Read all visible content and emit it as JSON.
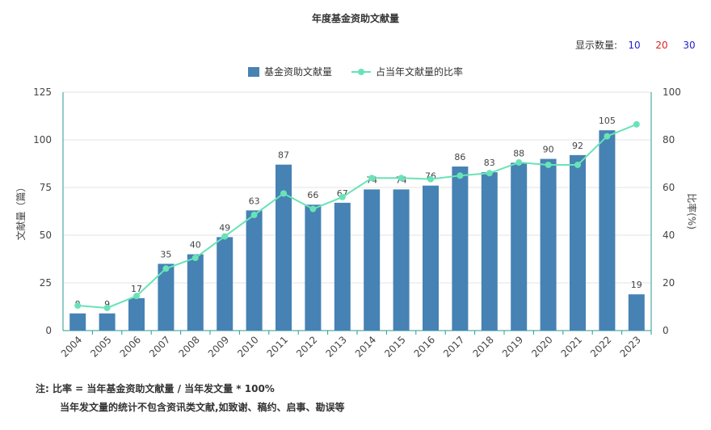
{
  "title": "年度基金资助文献量",
  "count_selector": {
    "label": "显示数量:",
    "options": [
      {
        "label": "10",
        "color": "#2222cc"
      },
      {
        "label": "20",
        "color": "#dd2222"
      },
      {
        "label": "30",
        "color": "#2222cc"
      }
    ]
  },
  "notes": {
    "line1": "注:  比率 = 当年基金资助文献量 / 当年发文量 * 100%",
    "line2": "当年发文量的统计不包含资讯类文献,如致谢、稿约、启事、勘误等"
  },
  "chart_data": {
    "type": "bar",
    "categories": [
      "2004",
      "2005",
      "2006",
      "2007",
      "2008",
      "2009",
      "2010",
      "2011",
      "2012",
      "2013",
      "2014",
      "2015",
      "2016",
      "2017",
      "2018",
      "2019",
      "2020",
      "2021",
      "2022",
      "2023"
    ],
    "series": [
      {
        "name": "基金资助文献量",
        "type": "bar",
        "axis": "left",
        "color": "#4682b4",
        "values": [
          9,
          9,
          17,
          35,
          40,
          49,
          63,
          87,
          66,
          67,
          74,
          74,
          76,
          86,
          83,
          88,
          90,
          92,
          105,
          19
        ]
      },
      {
        "name": "占当年文献量的比率",
        "type": "line",
        "axis": "right",
        "color": "#68e3b7",
        "values": [
          10.5,
          9.5,
          14.5,
          26,
          30.5,
          39.5,
          48.5,
          57.5,
          51,
          56,
          64,
          64,
          63.5,
          65,
          66,
          70.5,
          69.5,
          69.5,
          81.5,
          86.5
        ]
      }
    ],
    "ylabel": "文献量（篇）",
    "ylabel_right": "比率(%)",
    "ylim": [
      0,
      125
    ],
    "yticks": [
      0,
      25,
      50,
      75,
      100,
      125
    ],
    "ylim_right": [
      0,
      100
    ],
    "yticks_right": [
      0,
      20,
      40,
      60,
      80,
      100
    ],
    "grid": true,
    "legend": "top-center"
  }
}
